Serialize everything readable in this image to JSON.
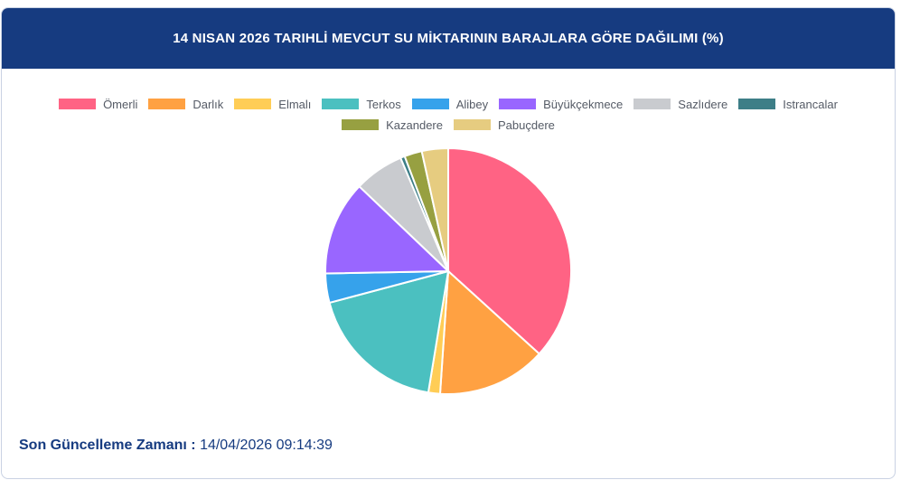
{
  "header": {
    "title": "14 NISAN 2026 TARIHLİ MEVCUT SU MİKTARININ BARAJLARA GÖRE DAĞILIMI (%)"
  },
  "chart_data": {
    "type": "pie",
    "title": "14 NISAN 2026 TARIHLİ MEVCUT SU MİKTARININ BARAJLARA GÖRE DAĞILIMI (%)",
    "legend_position": "top",
    "categories": [
      "Ömerli",
      "Darlık",
      "Elmalı",
      "Terkos",
      "Alibey",
      "Büyükçekmece",
      "Sazlıdere",
      "Istrancalar",
      "Kazandere",
      "Pabuçdere"
    ],
    "values": [
      38.2,
      14.9,
      1.6,
      19.0,
      4.0,
      12.9,
      6.8,
      0.6,
      2.4,
      3.6
    ],
    "colors": [
      "#ff6384",
      "#ffa142",
      "#ffcd56",
      "#4bc0c0",
      "#36a2eb",
      "#9966ff",
      "#c9cbcf",
      "#3d7e87",
      "#97a041",
      "#e6cc80"
    ]
  },
  "footer": {
    "label": "Son Güncelleme Zamanı :",
    "value": "14/04/2026 09:14:39"
  }
}
